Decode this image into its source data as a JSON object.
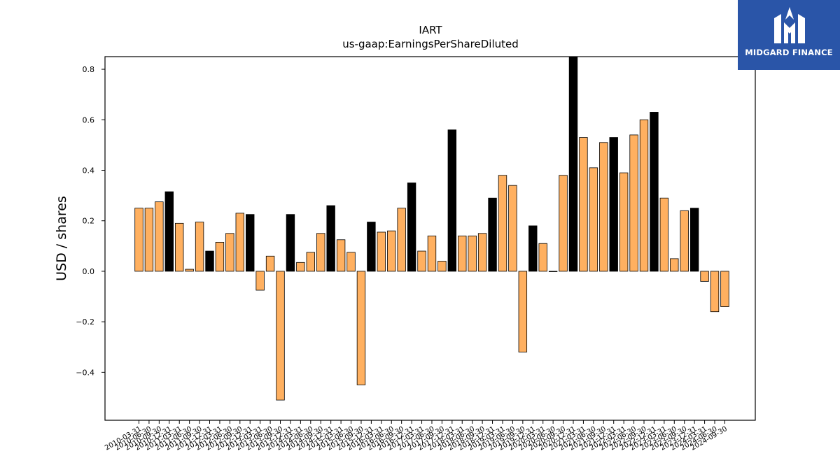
{
  "logo": {
    "text": "MIDGARD FINANCE",
    "background": "#2a55a8"
  },
  "chart_data": {
    "type": "bar",
    "title": "IART",
    "subtitle": "us-gaap:EarningsPerShareDiluted",
    "ylabel": "USD / shares",
    "xlabel": "",
    "ylim": [
      -0.59,
      0.85
    ],
    "yticks": [
      -0.4,
      -0.2,
      0.0,
      0.2,
      0.4,
      0.6,
      0.8
    ],
    "grid": false,
    "colors": {
      "quarter": "#ffb060",
      "annual": "#000000"
    },
    "categories": [
      "2010-03-31",
      "2010-06-30",
      "2010-09-30",
      "2010-12-31",
      "2011-03-31",
      "2011-06-30",
      "2011-09-30",
      "2011-12-31",
      "2012-03-31",
      "2012-06-30",
      "2012-09-30",
      "2012-12-31",
      "2013-03-31",
      "2013-06-30",
      "2013-09-30",
      "2013-12-31",
      "2014-03-31",
      "2014-06-30",
      "2014-09-30",
      "2014-12-31",
      "2015-03-31",
      "2015-06-30",
      "2015-09-30",
      "2015-12-31",
      "2016-03-31",
      "2016-06-30",
      "2016-09-30",
      "2016-12-31",
      "2017-03-31",
      "2017-06-30",
      "2017-09-30",
      "2017-12-31",
      "2018-03-31",
      "2018-06-30",
      "2018-09-30",
      "2018-12-31",
      "2019-03-31",
      "2019-06-30",
      "2019-09-30",
      "2019-12-31",
      "2020-03-31",
      "2020-06-30",
      "2020-09-30",
      "2020-12-31",
      "2021-03-31",
      "2021-06-30",
      "2021-09-30",
      "2021-12-31",
      "2022-03-31",
      "2022-06-30",
      "2022-09-30",
      "2022-12-31",
      "2023-03-31",
      "2023-06-30",
      "2023-09-30",
      "2023-12-31",
      "2024-03-31",
      "2024-06-30",
      "2024-09-30"
    ],
    "values": [
      0.25,
      0.25,
      0.275,
      0.315,
      0.19,
      0.008,
      0.195,
      0.08,
      0.115,
      0.15,
      0.23,
      0.225,
      -0.075,
      0.06,
      -0.51,
      0.225,
      0.035,
      0.075,
      0.15,
      0.26,
      0.125,
      0.075,
      -0.45,
      0.195,
      0.155,
      0.16,
      0.25,
      0.35,
      0.08,
      0.14,
      0.04,
      0.56,
      0.14,
      0.14,
      0.15,
      0.29,
      0.38,
      0.34,
      -0.32,
      0.18,
      0.11,
      0.0,
      0.38,
      0.85,
      0.53,
      0.41,
      0.51,
      0.53,
      0.39,
      0.54,
      0.6,
      0.63,
      0.29,
      0.05,
      0.24,
      0.25,
      -0.04,
      -0.16,
      -0.14
    ],
    "annual": [
      false,
      false,
      false,
      true,
      false,
      false,
      false,
      true,
      false,
      false,
      false,
      true,
      false,
      false,
      false,
      true,
      false,
      false,
      false,
      true,
      false,
      false,
      false,
      true,
      false,
      false,
      false,
      true,
      false,
      false,
      false,
      true,
      false,
      false,
      false,
      true,
      false,
      false,
      false,
      true,
      false,
      false,
      false,
      true,
      false,
      false,
      false,
      true,
      false,
      false,
      false,
      true,
      false,
      false,
      false,
      true,
      false,
      false,
      false
    ]
  }
}
